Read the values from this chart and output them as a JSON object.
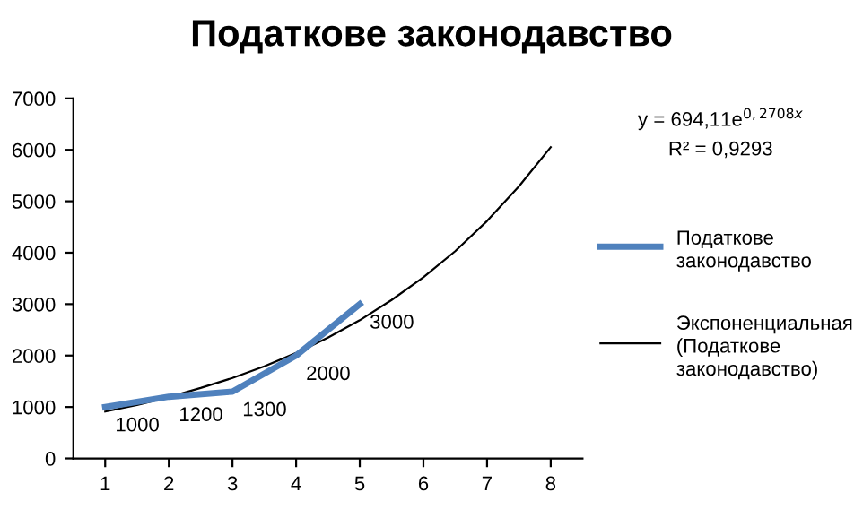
{
  "chart_data": {
    "type": "line",
    "title": "Податкове законодавство",
    "series": [
      {
        "name": "Податкове законодавство",
        "color": "#4f81bd",
        "x": [
          1,
          2,
          3,
          4,
          5
        ],
        "values": [
          1000,
          1200,
          1300,
          2000,
          3000
        ],
        "value_labels": [
          "1000",
          "1200",
          "1300",
          "2000",
          "3000"
        ]
      },
      {
        "name": "Экспоненциальная (Податкове законодавство)",
        "color": "#000000",
        "type": "line",
        "x": [
          1,
          1.5,
          2,
          2.5,
          3,
          3.5,
          4,
          4.5,
          5,
          5.5,
          6,
          6.5,
          7,
          7.5,
          8
        ],
        "values": [
          910,
          1040,
          1193,
          1370,
          1564,
          1790,
          2050,
          2350,
          2687,
          3080,
          3522,
          4030,
          4617,
          5290,
          6052
        ]
      }
    ],
    "xlim": [
      0.5,
      8.5
    ],
    "xticks": [
      1,
      2,
      3,
      4,
      5,
      6,
      7,
      8
    ],
    "ylim": [
      0,
      7000
    ],
    "yticks": [
      0,
      1000,
      2000,
      3000,
      4000,
      5000,
      6000,
      7000
    ],
    "grid": false,
    "legend": "right",
    "marker": "none",
    "line_style": "solid",
    "annotations": [
      "y = 694,11e$^{0,2708x}$",
      "R² = 0,9293"
    ]
  }
}
